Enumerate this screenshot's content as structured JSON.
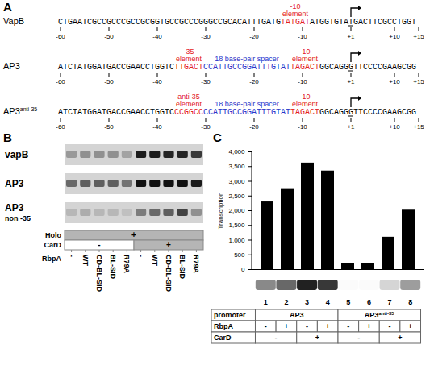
{
  "panel_a": {
    "label": "A",
    "sequences": [
      {
        "name": "VapB",
        "sequence": "CTGAATCGCCGCCCGCCGCGGTGCCGCCCGGGCCGCACATTTGATGTATGATATGGTGTATGACTTCGCCTGGT",
        "elements": [
          {
            "label": "-10 element",
            "start": 46,
            "end": 51,
            "color": "#e3231c"
          }
        ]
      },
      {
        "name": "AP3",
        "sequence": "ATCTATGGATGACCGAACCTGGTCTTGACTCCATTGCCGGATTTGTATTAGACTGGCAGGGTTCCCCGAAGCGG",
        "elements": [
          {
            "label": "-35 element",
            "start": 24,
            "end": 29,
            "color": "#e3231c"
          },
          {
            "label": "18 base-pair spacer",
            "start": 30,
            "end": 47,
            "color": "#2a35c9"
          },
          {
            "label": "-10 element",
            "start": 48,
            "end": 53,
            "color": "#e3231c"
          }
        ]
      },
      {
        "name": "AP3",
        "superscript": "anti-35",
        "sequence": "ATCTATGGATGACCGAACCTGGTCCCGGCCCCATTGCCGGATTTGTATTAGACTGGCAGGGTTCCCCGAAGCGG",
        "elements": [
          {
            "label": "anti-35 element",
            "start": 24,
            "end": 29,
            "color": "#e3231c"
          },
          {
            "label": "18 base-pair spacer",
            "start": 30,
            "end": 47,
            "color": "#2a35c9"
          },
          {
            "label": "-10 element",
            "start": 48,
            "end": 53,
            "color": "#e3231c"
          }
        ]
      }
    ],
    "first_position": -60,
    "position_ticks": [
      -60,
      -50,
      -40,
      -30,
      -20,
      -10,
      {
        "value": 1,
        "label": "+1"
      },
      {
        "value": 10,
        "label": "+10"
      },
      {
        "value": 15,
        "label": "+15"
      }
    ],
    "start_site": 1
  },
  "panel_b": {
    "label": "B",
    "gel_rows": [
      {
        "label": "vapB",
        "band_intensity": [
          0.3,
          0.35,
          0.35,
          0.35,
          0.25,
          0.95,
          0.95,
          0.9,
          0.9,
          0.8
        ]
      },
      {
        "label": "AP3",
        "band_intensity": [
          0.55,
          0.6,
          0.6,
          0.6,
          0.5,
          1,
          1,
          1,
          1,
          0.95
        ]
      },
      {
        "label": "AP3",
        "sublabel": "non -35",
        "band_intensity": [
          0.15,
          0.2,
          0.15,
          0.15,
          0.1,
          0.45,
          0.55,
          0.6,
          0.75,
          0.35
        ]
      }
    ],
    "table": [
      {
        "label": "Holo",
        "cells": [
          {
            "text": "+",
            "span": 10,
            "shaded": true
          }
        ]
      },
      {
        "label": "CarD",
        "cells": [
          {
            "text": "-",
            "span": 5,
            "shaded": false
          },
          {
            "text": "+",
            "span": 5,
            "shaded": true
          }
        ]
      },
      {
        "label": "RbpA",
        "lanes": [
          "-",
          "WT",
          "CD-BL-SID",
          "BL-SID",
          "R79A",
          "-",
          "WT",
          "CD-BL-SID",
          "BL-SID",
          "R79A"
        ]
      }
    ]
  },
  "chart_data": {
    "type": "bar",
    "panel_label": "C",
    "y_label": "Transcription",
    "categories": [
      "1",
      "2",
      "3",
      "4",
      "5",
      "6",
      "7",
      "8"
    ],
    "values": [
      2300,
      2750,
      3620,
      3350,
      200,
      200,
      1100,
      2020
    ],
    "color": "#000000",
    "ylim": [
      0,
      4000
    ],
    "yticks": [
      0,
      500,
      1000,
      1500,
      2000,
      2500,
      3000,
      3500,
      4000
    ],
    "grid": false,
    "tick_labels": "y"
  },
  "panel_c_table": [
    {
      "label": "promoter",
      "cells": [
        {
          "text": "AP3",
          "span": 4
        },
        {
          "text": "AP3",
          "superscript": "anti-35",
          "span": 4
        }
      ]
    },
    {
      "label": "RbpA",
      "cells": [
        {
          "text": "-",
          "span": 1
        },
        {
          "text": "+",
          "span": 1
        },
        {
          "text": "-",
          "span": 1
        },
        {
          "text": "+",
          "span": 1
        },
        {
          "text": "-",
          "span": 1
        },
        {
          "text": "+",
          "span": 1
        },
        {
          "text": "-",
          "span": 1
        },
        {
          "text": "+",
          "span": 1
        }
      ]
    },
    {
      "label": "CarD",
      "cells": [
        {
          "text": "-",
          "span": 2
        },
        {
          "text": "+",
          "span": 2
        },
        {
          "text": "-",
          "span": 2
        },
        {
          "text": "+",
          "span": 2
        }
      ]
    }
  ]
}
